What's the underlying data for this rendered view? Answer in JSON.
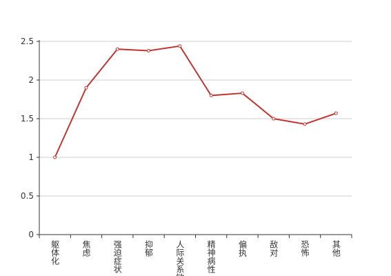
{
  "chart_data": {
    "type": "line",
    "categories": [
      "躯体化",
      "焦虑",
      "强迫症状",
      "抑郁",
      "人际关系敏感",
      "精神病性",
      "偏执",
      "敌对",
      "恐怖",
      "其他"
    ],
    "values": [
      1.0,
      1.9,
      2.4,
      2.38,
      2.44,
      1.8,
      1.83,
      1.5,
      1.43,
      1.57
    ],
    "color": "#c23531",
    "ylim": [
      0,
      2.5
    ],
    "yticks": [
      0,
      0.5,
      1,
      1.5,
      2,
      2.5
    ],
    "grid": true
  }
}
